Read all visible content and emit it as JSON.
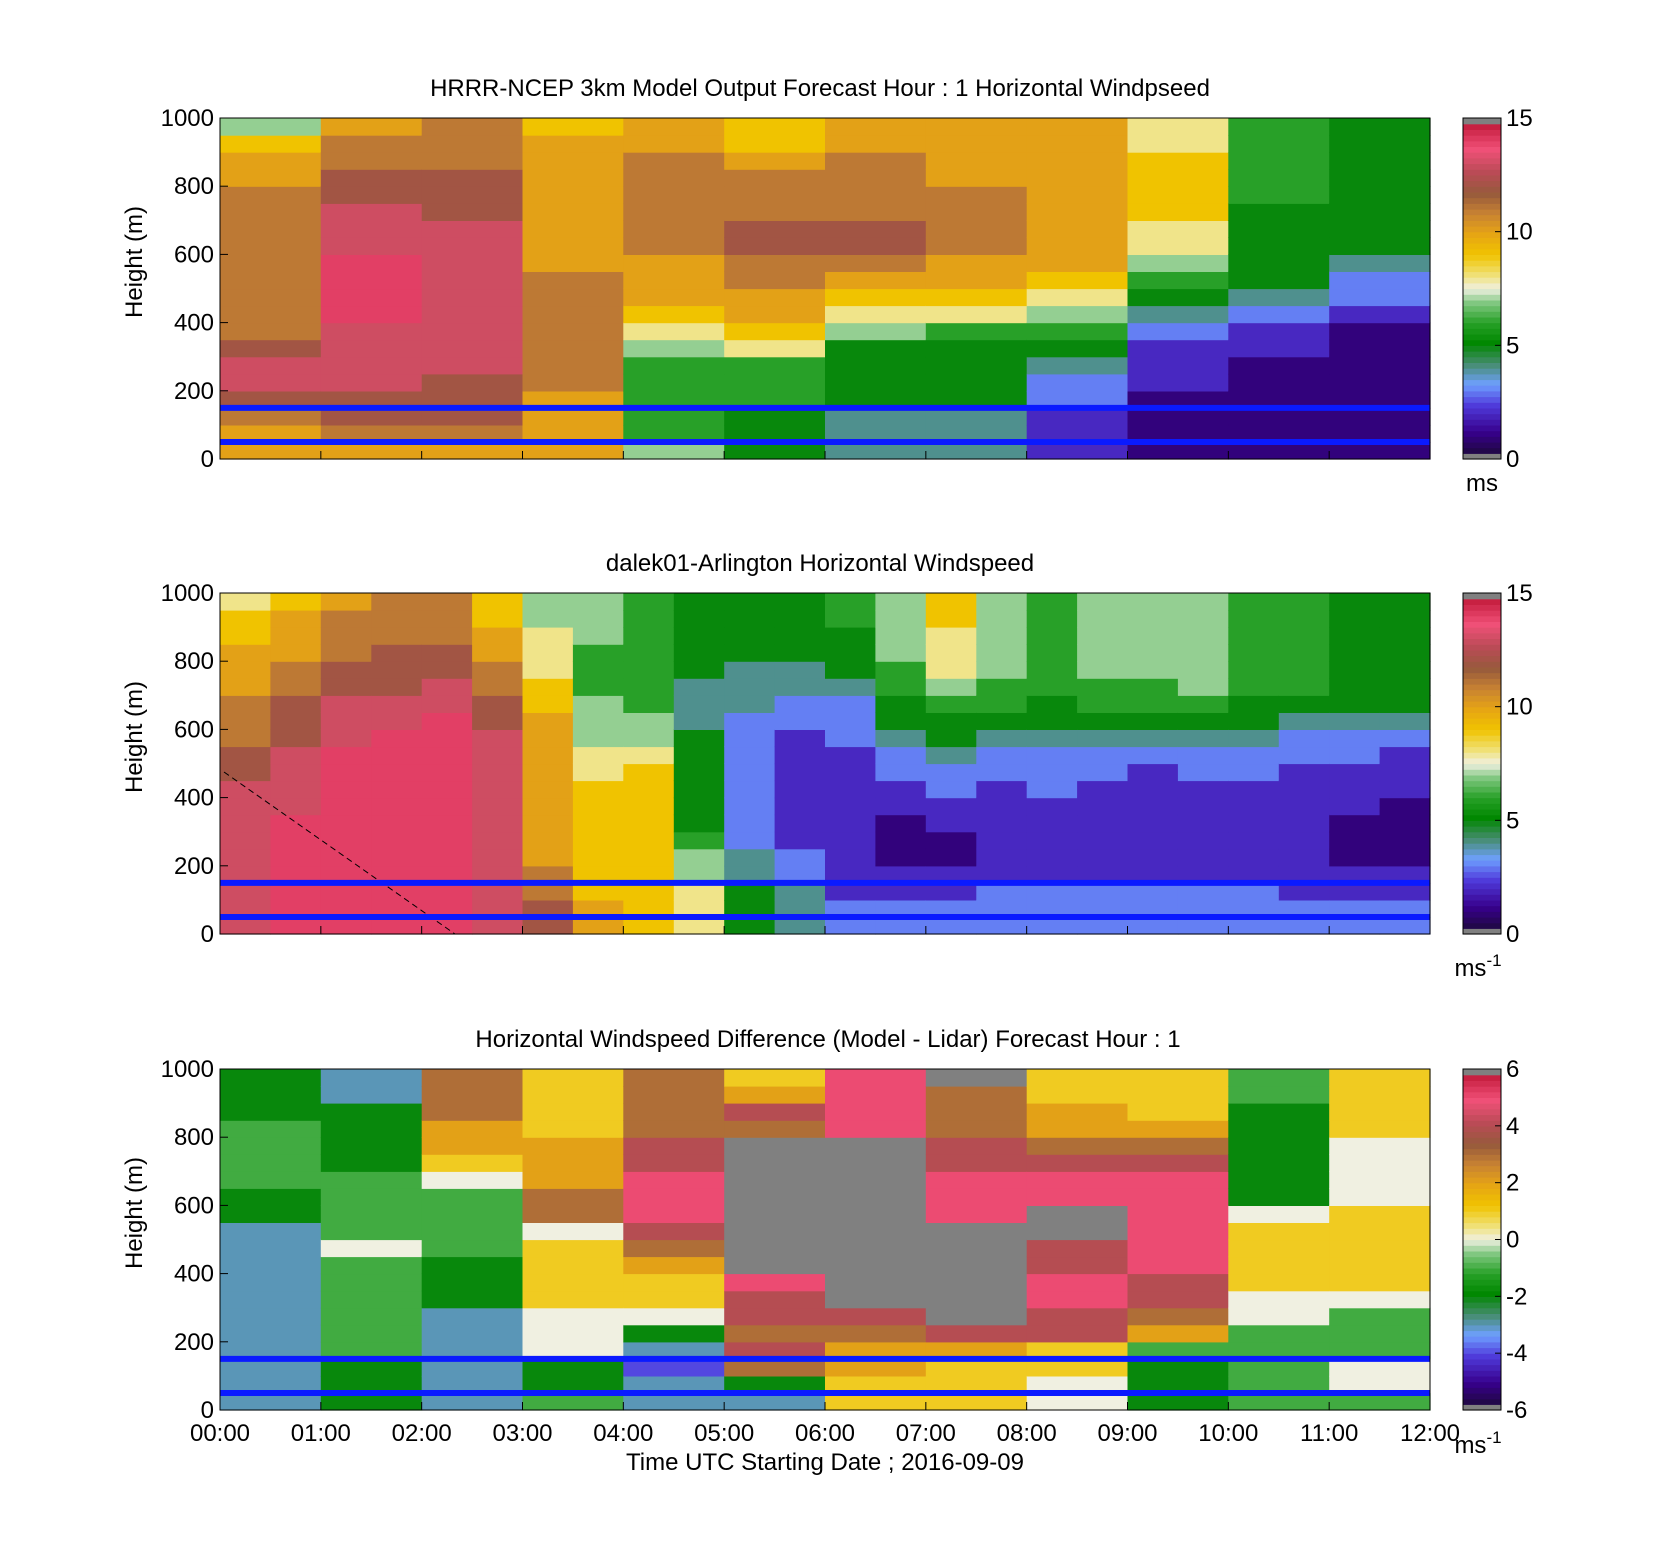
{
  "chart_data": [
    {
      "type": "heatmap",
      "title": "HRRR-NCEP 3km Model Output   Forecast Hour : 1 Horizontal Windpseed",
      "ylabel": "Height (m)",
      "xlim": [
        0,
        12
      ],
      "ylim": [
        0,
        1000
      ],
      "yticks": [
        "0",
        "200",
        "400",
        "600",
        "800",
        "1000"
      ],
      "colorbar": {
        "min": 0,
        "max": 15,
        "ticks": [
          "0",
          "5",
          "10",
          "15"
        ],
        "unit": "ms",
        "unit_sup": ""
      },
      "reference_lines_m": [
        150,
        50
      ],
      "x_hours": [
        0,
        1,
        2,
        3,
        4,
        5,
        6,
        7,
        8,
        9,
        10,
        11
      ],
      "heights_m": [
        0,
        50,
        100,
        150,
        200,
        250,
        300,
        350,
        400,
        450,
        500,
        550,
        600,
        650,
        700,
        750,
        800,
        850,
        900,
        950
      ],
      "z": [
        [
          10,
          10,
          11,
          12,
          13,
          13,
          12,
          11,
          11,
          11,
          11,
          11,
          11,
          11,
          11,
          11,
          10,
          10,
          9,
          7
        ],
        [
          10,
          11,
          12,
          12,
          13,
          13,
          13,
          13,
          14,
          14,
          14,
          14,
          13,
          13,
          13,
          12,
          12,
          11,
          11,
          10
        ],
        [
          10,
          11,
          12,
          12,
          12,
          13,
          13,
          13,
          13,
          13,
          13,
          13,
          13,
          13,
          12,
          12,
          12,
          11,
          11,
          11
        ],
        [
          10,
          10,
          10,
          10,
          11,
          11,
          11,
          11,
          11,
          11,
          11,
          10,
          10,
          10,
          10,
          10,
          10,
          10,
          10,
          9
        ],
        [
          7,
          6,
          6,
          6,
          6,
          6,
          7,
          8,
          9,
          10,
          10,
          10,
          11,
          11,
          11,
          11,
          11,
          11,
          10,
          10
        ],
        [
          5,
          5,
          5,
          6,
          6,
          6,
          8,
          9,
          10,
          10,
          11,
          11,
          12,
          12,
          11,
          11,
          11,
          10,
          9,
          9
        ],
        [
          4,
          4,
          4,
          5,
          5,
          5,
          5,
          7,
          8,
          9,
          10,
          11,
          12,
          12,
          11,
          11,
          11,
          11,
          10,
          10
        ],
        [
          4,
          4,
          4,
          5,
          5,
          5,
          5,
          6,
          8,
          9,
          10,
          10,
          11,
          11,
          11,
          11,
          10,
          10,
          10,
          10
        ],
        [
          2,
          2,
          2,
          3,
          3,
          4,
          5,
          6,
          7,
          8,
          9,
          10,
          10,
          10,
          10,
          10,
          10,
          10,
          10,
          10
        ],
        [
          1,
          1,
          1,
          1,
          2,
          2,
          2,
          3,
          4,
          5,
          6,
          7,
          8,
          8,
          9,
          9,
          9,
          9,
          8,
          8
        ],
        [
          1,
          1,
          1,
          1,
          1,
          1,
          2,
          2,
          3,
          4,
          5,
          5,
          5,
          5,
          5,
          6,
          6,
          6,
          6,
          6
        ],
        [
          1,
          1,
          1,
          1,
          1,
          1,
          1,
          1,
          2,
          3,
          3,
          4,
          5,
          5,
          5,
          5,
          5,
          5,
          5,
          5
        ]
      ]
    },
    {
      "type": "heatmap",
      "title": "dalek01-Arlington  Horizontal Windspeed",
      "ylabel": "Height (m)",
      "xlim": [
        0,
        12
      ],
      "ylim": [
        0,
        1000
      ],
      "yticks": [
        "0",
        "200",
        "400",
        "600",
        "800",
        "1000"
      ],
      "colorbar": {
        "min": 0,
        "max": 15,
        "ticks": [
          "0",
          "5",
          "10",
          "15"
        ],
        "unit": "ms",
        "unit_sup": "-1"
      },
      "reference_lines_m": [
        150,
        50
      ],
      "x_hours": [
        0,
        0.5,
        1,
        1.5,
        2,
        2.5,
        3,
        3.5,
        4,
        4.5,
        5,
        5.5,
        6,
        6.5,
        7,
        7.5,
        8,
        8.5,
        9,
        9.5,
        10,
        10.5,
        11,
        11.5
      ],
      "heights_m": [
        0,
        50,
        100,
        150,
        200,
        250,
        300,
        350,
        400,
        450,
        500,
        550,
        600,
        650,
        700,
        750,
        800,
        850,
        900,
        950
      ],
      "z": [
        [
          13,
          13,
          13,
          13,
          13,
          13,
          13,
          13,
          13,
          12,
          12,
          11,
          11,
          11,
          10,
          10,
          10,
          9,
          9,
          8
        ],
        [
          14,
          14,
          14,
          14,
          14,
          14,
          14,
          13,
          13,
          13,
          13,
          12,
          12,
          12,
          11,
          11,
          10,
          10,
          10,
          9
        ],
        [
          14,
          14,
          14,
          14,
          14,
          14,
          14,
          14,
          14,
          14,
          14,
          13,
          13,
          13,
          12,
          12,
          11,
          11,
          11,
          10
        ],
        [
          14,
          14,
          14,
          14,
          14,
          14,
          14,
          14,
          14,
          14,
          14,
          14,
          13,
          13,
          12,
          12,
          12,
          11,
          11,
          11
        ],
        [
          14,
          14,
          14,
          14,
          14,
          14,
          14,
          14,
          14,
          14,
          14,
          14,
          14,
          13,
          13,
          12,
          12,
          11,
          11,
          11
        ],
        [
          13,
          13,
          13,
          13,
          13,
          13,
          13,
          13,
          13,
          13,
          13,
          13,
          12,
          12,
          11,
          11,
          10,
          10,
          9,
          9
        ],
        [
          12,
          12,
          11,
          11,
          10,
          10,
          10,
          10,
          10,
          10,
          10,
          10,
          10,
          9,
          9,
          8,
          8,
          8,
          7,
          7
        ],
        [
          10,
          10,
          9,
          9,
          9,
          9,
          9,
          9,
          9,
          8,
          8,
          7,
          7,
          7,
          6,
          6,
          6,
          7,
          7,
          7
        ],
        [
          9,
          9,
          9,
          9,
          9,
          9,
          9,
          9,
          9,
          9,
          8,
          7,
          7,
          6,
          6,
          6,
          6,
          6,
          6,
          6
        ],
        [
          8,
          8,
          8,
          7,
          7,
          6,
          5,
          5,
          5,
          5,
          5,
          5,
          4,
          4,
          4,
          5,
          5,
          5,
          5,
          5
        ],
        [
          5,
          5,
          5,
          4,
          4,
          3,
          3,
          3,
          3,
          3,
          3,
          3,
          3,
          4,
          4,
          4,
          5,
          5,
          5,
          5
        ],
        [
          4,
          4,
          4,
          3,
          3,
          2,
          2,
          2,
          2,
          2,
          2,
          2,
          3,
          3,
          4,
          4,
          5,
          5,
          5,
          5
        ],
        [
          3,
          3,
          2,
          2,
          2,
          2,
          2,
          2,
          2,
          2,
          2,
          3,
          3,
          3,
          4,
          5,
          5,
          5,
          6,
          6
        ],
        [
          3,
          3,
          2,
          2,
          1,
          1,
          1,
          2,
          2,
          3,
          3,
          4,
          5,
          5,
          6,
          6,
          7,
          7,
          7,
          7
        ],
        [
          3,
          3,
          2,
          2,
          1,
          1,
          2,
          2,
          3,
          3,
          4,
          5,
          5,
          6,
          7,
          8,
          8,
          8,
          9,
          9
        ],
        [
          3,
          3,
          3,
          2,
          2,
          2,
          2,
          2,
          2,
          3,
          3,
          4,
          5,
          6,
          6,
          7,
          7,
          7,
          7,
          7
        ],
        [
          3,
          3,
          3,
          2,
          2,
          2,
          2,
          2,
          3,
          3,
          3,
          4,
          5,
          5,
          6,
          6,
          6,
          6,
          6,
          6
        ],
        [
          3,
          3,
          3,
          2,
          2,
          2,
          2,
          2,
          2,
          3,
          3,
          4,
          5,
          6,
          6,
          7,
          7,
          7,
          7,
          7
        ],
        [
          3,
          3,
          3,
          2,
          2,
          2,
          2,
          2,
          2,
          2,
          3,
          4,
          5,
          6,
          6,
          7,
          7,
          7,
          7,
          7
        ],
        [
          3,
          3,
          3,
          2,
          2,
          2,
          2,
          2,
          2,
          3,
          3,
          4,
          5,
          6,
          7,
          7,
          7,
          7,
          7,
          7
        ],
        [
          3,
          3,
          3,
          2,
          2,
          2,
          2,
          2,
          2,
          3,
          3,
          4,
          5,
          5,
          6,
          6,
          6,
          6,
          6,
          6
        ],
        [
          3,
          3,
          2,
          2,
          2,
          2,
          2,
          2,
          2,
          2,
          3,
          3,
          4,
          5,
          6,
          6,
          6,
          6,
          6,
          6
        ],
        [
          3,
          3,
          2,
          2,
          1,
          1,
          1,
          2,
          2,
          2,
          3,
          3,
          4,
          5,
          5,
          5,
          5,
          5,
          5,
          5
        ],
        [
          3,
          3,
          2,
          2,
          1,
          1,
          1,
          1,
          2,
          2,
          2,
          3,
          4,
          5,
          5,
          5,
          5,
          5,
          5,
          5
        ]
      ]
    },
    {
      "type": "heatmap",
      "title": "Horizontal Windspeed Difference (Model - Lidar) Forecast Hour : 1",
      "ylabel": "Height (m)",
      "xlabel": "Time UTC  Starting Date ; 2016-09-09",
      "xlim": [
        0,
        12
      ],
      "ylim": [
        0,
        1000
      ],
      "yticks": [
        "0",
        "200",
        "400",
        "600",
        "800",
        "1000"
      ],
      "xticks": [
        "00:00",
        "01:00",
        "02:00",
        "03:00",
        "04:00",
        "05:00",
        "06:00",
        "07:00",
        "08:00",
        "09:00",
        "10:00",
        "11:00",
        "12:00"
      ],
      "colorbar": {
        "min": -6,
        "max": 6,
        "ticks": [
          "-6",
          "-4",
          "-2",
          "0",
          "2",
          "4",
          "6"
        ],
        "unit": "ms",
        "unit_sup": "-1"
      },
      "reference_lines_m": [
        150,
        50
      ],
      "x_hours": [
        0,
        1,
        2,
        3,
        4,
        5,
        6,
        7,
        8,
        9,
        10,
        11
      ],
      "heights_m": [
        0,
        50,
        100,
        150,
        200,
        250,
        300,
        350,
        400,
        450,
        500,
        550,
        600,
        650,
        700,
        750,
        800,
        850,
        900,
        950
      ],
      "z": [
        [
          -3,
          -3,
          -3,
          -3,
          -3,
          -3,
          -3,
          -3,
          -3,
          -3,
          -3,
          -2,
          -2,
          -1,
          -1,
          -1,
          -1,
          -2,
          -2,
          -2
        ],
        [
          -2,
          -2,
          -2,
          -1,
          -1,
          -1,
          -1,
          -1,
          -1,
          0,
          -1,
          -1,
          -1,
          -1,
          -2,
          -2,
          -2,
          -2,
          -3,
          -3
        ],
        [
          -3,
          -3,
          -3,
          -3,
          -3,
          -3,
          -2,
          -2,
          -2,
          -1,
          -1,
          -1,
          -1,
          0,
          1,
          2,
          2,
          3,
          3,
          3
        ],
        [
          -1,
          -2,
          -2,
          0,
          0,
          0,
          1,
          1,
          1,
          1,
          0,
          3,
          3,
          2,
          2,
          2,
          1,
          1,
          1,
          1
        ],
        [
          -3,
          -3,
          -4,
          -3,
          -2,
          0,
          1,
          1,
          2,
          3,
          4,
          5,
          5,
          5,
          4,
          4,
          3,
          3,
          3,
          3
        ],
        [
          -3,
          -2,
          3,
          4,
          3,
          4,
          4,
          5,
          null,
          null,
          null,
          null,
          null,
          null,
          null,
          null,
          3,
          4,
          2,
          1
        ],
        [
          1,
          1,
          2,
          2,
          3,
          4,
          null,
          null,
          null,
          null,
          null,
          null,
          null,
          null,
          null,
          null,
          5,
          5,
          5,
          5
        ],
        [
          1,
          1,
          1,
          2,
          4,
          null,
          null,
          null,
          null,
          null,
          null,
          5,
          5,
          5,
          4,
          4,
          3,
          3,
          3,
          null
        ],
        [
          0,
          0,
          1,
          1,
          4,
          4,
          5,
          5,
          4,
          4,
          null,
          null,
          5,
          5,
          4,
          3,
          2,
          2,
          1,
          1
        ],
        [
          -2,
          -2,
          -2,
          -1,
          2,
          3,
          4,
          4,
          5,
          5,
          5,
          5,
          5,
          5,
          4,
          3,
          2,
          1,
          1,
          1
        ],
        [
          -1,
          -1,
          -1,
          -1,
          -1,
          0,
          0,
          1,
          1,
          1,
          1,
          0,
          -2,
          -2,
          -2,
          -2,
          -2,
          -2,
          -1,
          -1
        ],
        [
          -1,
          0,
          0,
          -1,
          -1,
          -1,
          0,
          1,
          1,
          1,
          1,
          1,
          0,
          0,
          0,
          0,
          1,
          1,
          1,
          1
        ]
      ]
    }
  ]
}
